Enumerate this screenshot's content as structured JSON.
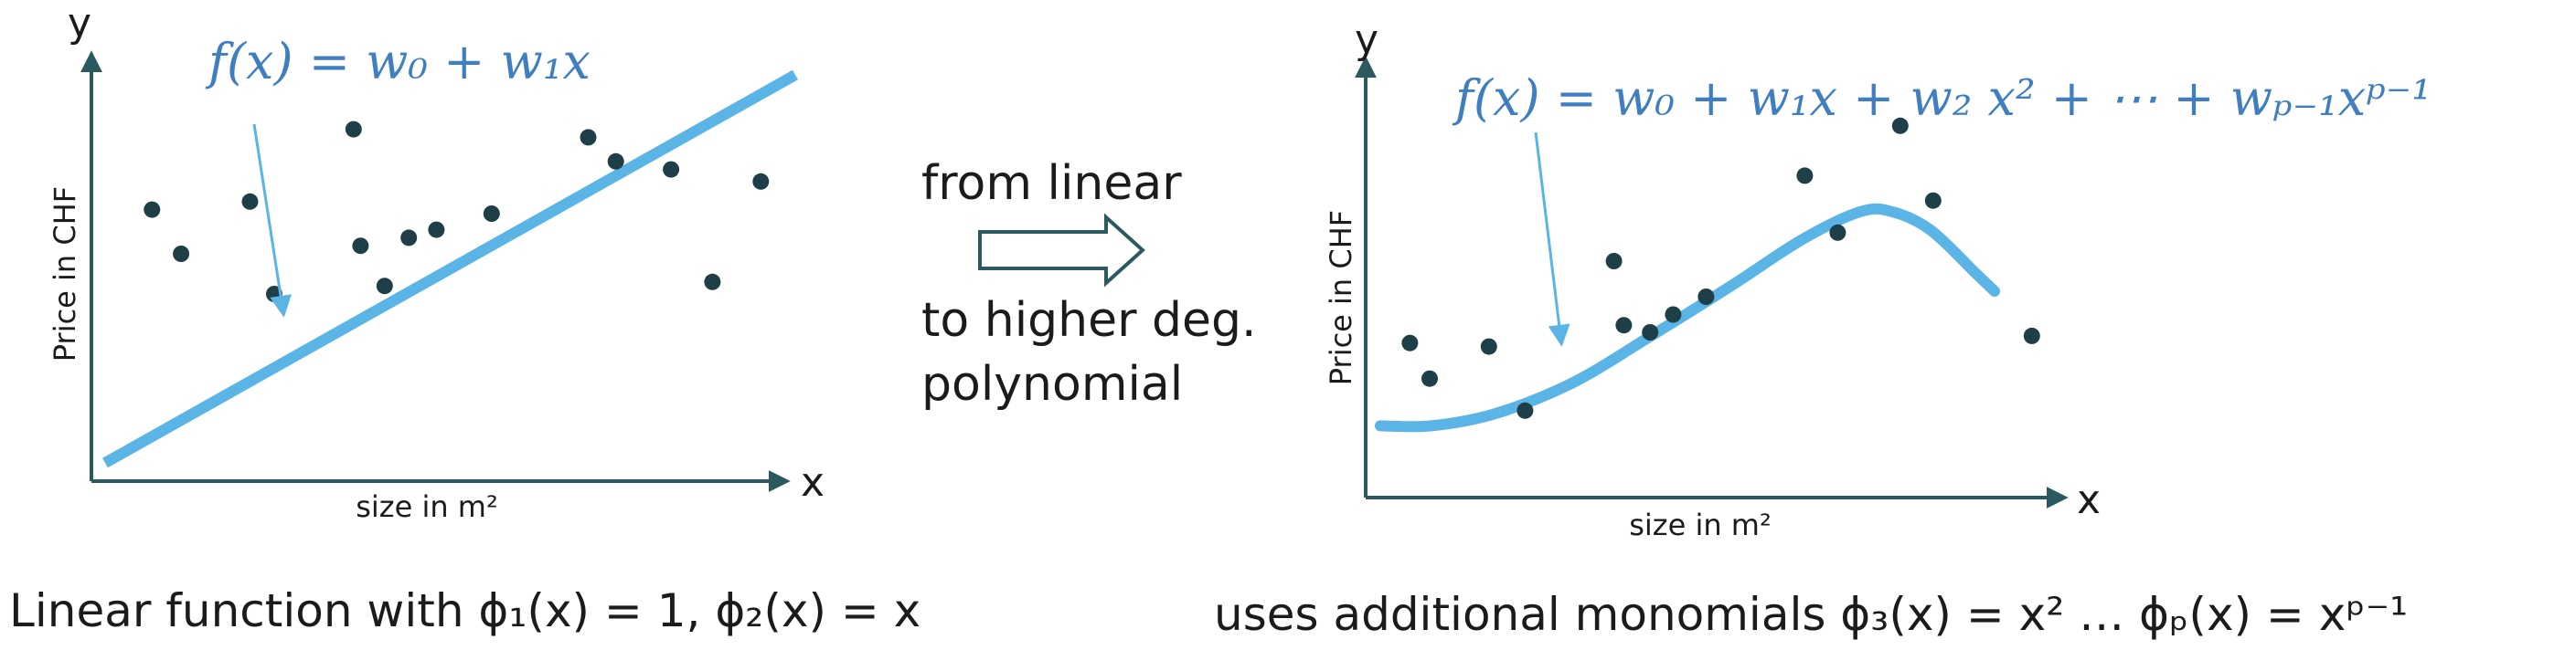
{
  "colors": {
    "axis": "#2a5a60",
    "dot": "#1f3f48",
    "curve": "#5ab4e5",
    "formula": "#3f7ec0",
    "text": "#1b1b1b"
  },
  "left_plot": {
    "y_label": "y",
    "x_label": "x",
    "y_axis_title": "Price in CHF",
    "x_axis_title": "size in m²",
    "formula": "f(x) = w₀ + w₁x",
    "caption": "Linear function with ϕ₁(x) = 1, ϕ₂(x) = x",
    "points": [
      [
        0.068,
        0.66
      ],
      [
        0.11,
        0.55
      ],
      [
        0.21,
        0.68
      ],
      [
        0.245,
        0.45
      ],
      [
        0.36,
        0.86
      ],
      [
        0.37,
        0.57
      ],
      [
        0.405,
        0.47
      ],
      [
        0.44,
        0.59
      ],
      [
        0.48,
        0.61
      ],
      [
        0.56,
        0.65
      ],
      [
        0.7,
        0.84
      ],
      [
        0.74,
        0.78
      ],
      [
        0.82,
        0.76
      ],
      [
        0.88,
        0.48
      ],
      [
        0.95,
        0.73
      ]
    ],
    "fit_line": [
      [
        0.02,
        0.05
      ],
      [
        0.98,
        0.97
      ]
    ]
  },
  "middle": {
    "top_text": "from linear",
    "bottom_text_1": "to higher deg.",
    "bottom_text_2": "polynomial",
    "arrow_icon": "hollow-right-arrow-icon"
  },
  "right_plot": {
    "y_label": "y",
    "x_label": "x",
    "y_axis_title": "Price in CHF",
    "x_axis_title": "size in m²",
    "formula": "f(x) = w₀ + w₁x + w₂ x² + ⋯ + wₚ₋₁xᵖ⁻¹",
    "caption": "uses additional monomials ϕ₃(x) = x² … ϕₚ(x) = xᵖ⁻¹",
    "points": [
      [
        0.045,
        0.37
      ],
      [
        0.075,
        0.27
      ],
      [
        0.165,
        0.36
      ],
      [
        0.22,
        0.18
      ],
      [
        0.355,
        0.6
      ],
      [
        0.37,
        0.42
      ],
      [
        0.41,
        0.4
      ],
      [
        0.445,
        0.45
      ],
      [
        0.495,
        0.5
      ],
      [
        0.645,
        0.84
      ],
      [
        0.695,
        0.68
      ],
      [
        0.79,
        0.98
      ],
      [
        0.84,
        0.77
      ],
      [
        0.99,
        0.39
      ]
    ],
    "curve": [
      [
        0.0,
        0.16
      ],
      [
        0.08,
        0.16
      ],
      [
        0.18,
        0.2
      ],
      [
        0.3,
        0.3
      ],
      [
        0.42,
        0.45
      ],
      [
        0.55,
        0.62
      ],
      [
        0.66,
        0.77
      ],
      [
        0.75,
        0.86
      ],
      [
        0.8,
        0.86
      ],
      [
        0.86,
        0.8
      ],
      [
        0.93,
        0.66
      ],
      [
        0.96,
        0.6
      ]
    ]
  }
}
